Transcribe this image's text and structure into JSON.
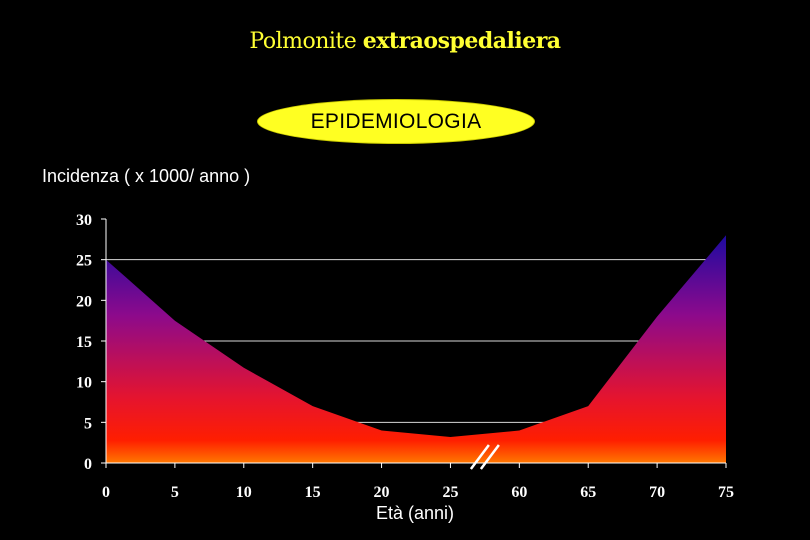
{
  "slide": {
    "title_part1": "Polmonite",
    "title_part2": "extraospedaliera",
    "badge": "EPIDEMIOLOGIA"
  },
  "chart_data": {
    "type": "area",
    "title": "",
    "ylabel": "Incidenza ( x 1000/ anno )",
    "xlabel": "Età (anni)",
    "x_tick_labels": [
      "0",
      "5",
      "10",
      "15",
      "20",
      "25",
      "60",
      "65",
      "70",
      "75"
    ],
    "y_tick_labels": [
      "0",
      "5",
      "10",
      "15",
      "20",
      "25",
      "30"
    ],
    "ylim": [
      0,
      30
    ],
    "axis_break_between": [
      "25",
      "60"
    ],
    "grid": "horizontal at 5, 25",
    "fill_gradient": [
      "#1e0aa0",
      "#8c0a8c",
      "#e6142d",
      "#ff1e00",
      "#ff7800"
    ],
    "points": [
      {
        "x": "0",
        "y": 25
      },
      {
        "x": "5",
        "y": 17.5
      },
      {
        "x": "10",
        "y": 11.7
      },
      {
        "x": "15",
        "y": 7
      },
      {
        "x": "20",
        "y": 4
      },
      {
        "x": "25",
        "y": 3.2
      },
      {
        "x": "60",
        "y": 4
      },
      {
        "x": "65",
        "y": 7
      },
      {
        "x": "70",
        "y": 18
      },
      {
        "x": "75",
        "y": 28
      }
    ]
  }
}
